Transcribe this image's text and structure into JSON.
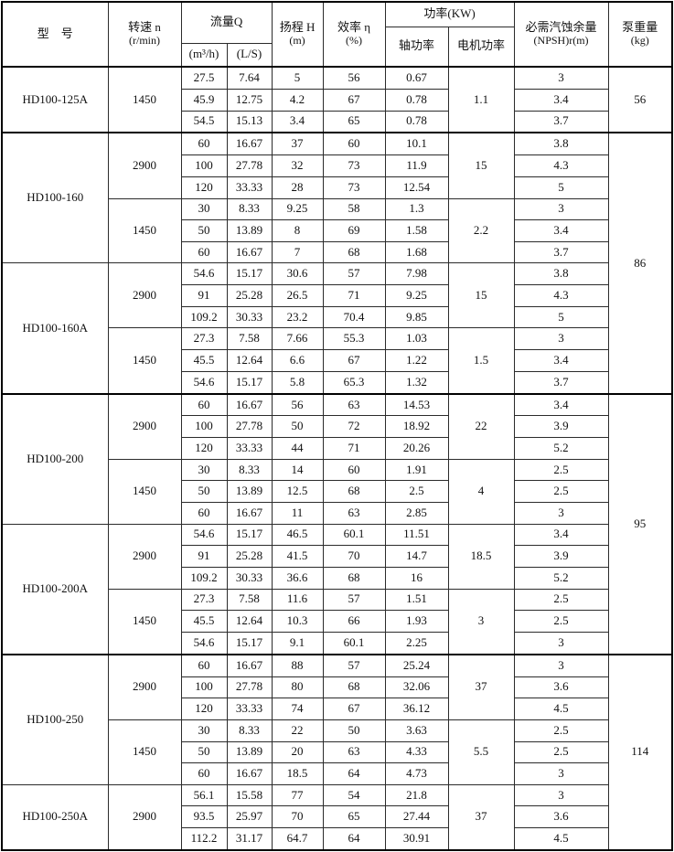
{
  "table": {
    "header": {
      "model": "型　号",
      "speed_l1": "转速 n",
      "speed_l2": "(r/min)",
      "flow": "流量Q",
      "flow_m3h": "(m³/h)",
      "flow_ls": "(L/S)",
      "head_l1": "扬程 H",
      "head_l2": "(m)",
      "eff_l1": "效率 η",
      "eff_l2": "(%)",
      "power": "功率(KW)",
      "shaft": "轴功率",
      "motor": "电机功率",
      "npsh_l1": "必需汽蚀余量",
      "npsh_l2": "(NPSH)r(m)",
      "weight_l1": "泵重量",
      "weight_l2": "(kg)"
    },
    "groups": [
      {
        "weight": "56",
        "models": [
          {
            "model": "HD100-125A",
            "blocks": [
              {
                "speed": "1450",
                "motor": "1.1",
                "rows": [
                  {
                    "m3h": "27.5",
                    "ls": "7.64",
                    "h": "5",
                    "eff": "56",
                    "shaft": "0.67",
                    "npsh": "3"
                  },
                  {
                    "m3h": "45.9",
                    "ls": "12.75",
                    "h": "4.2",
                    "eff": "67",
                    "shaft": "0.78",
                    "npsh": "3.4"
                  },
                  {
                    "m3h": "54.5",
                    "ls": "15.13",
                    "h": "3.4",
                    "eff": "65",
                    "shaft": "0.78",
                    "npsh": "3.7"
                  }
                ]
              }
            ]
          }
        ]
      },
      {
        "weight": "86",
        "models": [
          {
            "model": "HD100-160",
            "blocks": [
              {
                "speed": "2900",
                "motor": "15",
                "rows": [
                  {
                    "m3h": "60",
                    "ls": "16.67",
                    "h": "37",
                    "eff": "60",
                    "shaft": "10.1",
                    "npsh": "3.8"
                  },
                  {
                    "m3h": "100",
                    "ls": "27.78",
                    "h": "32",
                    "eff": "73",
                    "shaft": "11.9",
                    "npsh": "4.3"
                  },
                  {
                    "m3h": "120",
                    "ls": "33.33",
                    "h": "28",
                    "eff": "73",
                    "shaft": "12.54",
                    "npsh": "5"
                  }
                ]
              },
              {
                "speed": "1450",
                "motor": "2.2",
                "rows": [
                  {
                    "m3h": "30",
                    "ls": "8.33",
                    "h": "9.25",
                    "eff": "58",
                    "shaft": "1.3",
                    "npsh": "3"
                  },
                  {
                    "m3h": "50",
                    "ls": "13.89",
                    "h": "8",
                    "eff": "69",
                    "shaft": "1.58",
                    "npsh": "3.4"
                  },
                  {
                    "m3h": "60",
                    "ls": "16.67",
                    "h": "7",
                    "eff": "68",
                    "shaft": "1.68",
                    "npsh": "3.7"
                  }
                ]
              }
            ]
          },
          {
            "model": "HD100-160A",
            "blocks": [
              {
                "speed": "2900",
                "motor": "15",
                "rows": [
                  {
                    "m3h": "54.6",
                    "ls": "15.17",
                    "h": "30.6",
                    "eff": "57",
                    "shaft": "7.98",
                    "npsh": "3.8"
                  },
                  {
                    "m3h": "91",
                    "ls": "25.28",
                    "h": "26.5",
                    "eff": "71",
                    "shaft": "9.25",
                    "npsh": "4.3"
                  },
                  {
                    "m3h": "109.2",
                    "ls": "30.33",
                    "h": "23.2",
                    "eff": "70.4",
                    "shaft": "9.85",
                    "npsh": "5"
                  }
                ]
              },
              {
                "speed": "1450",
                "motor": "1.5",
                "rows": [
                  {
                    "m3h": "27.3",
                    "ls": "7.58",
                    "h": "7.66",
                    "eff": "55.3",
                    "shaft": "1.03",
                    "npsh": "3"
                  },
                  {
                    "m3h": "45.5",
                    "ls": "12.64",
                    "h": "6.6",
                    "eff": "67",
                    "shaft": "1.22",
                    "npsh": "3.4"
                  },
                  {
                    "m3h": "54.6",
                    "ls": "15.17",
                    "h": "5.8",
                    "eff": "65.3",
                    "shaft": "1.32",
                    "npsh": "3.7"
                  }
                ]
              }
            ]
          }
        ]
      },
      {
        "weight": "95",
        "models": [
          {
            "model": "HD100-200",
            "blocks": [
              {
                "speed": "2900",
                "motor": "22",
                "rows": [
                  {
                    "m3h": "60",
                    "ls": "16.67",
                    "h": "56",
                    "eff": "63",
                    "shaft": "14.53",
                    "npsh": "3.4"
                  },
                  {
                    "m3h": "100",
                    "ls": "27.78",
                    "h": "50",
                    "eff": "72",
                    "shaft": "18.92",
                    "npsh": "3.9"
                  },
                  {
                    "m3h": "120",
                    "ls": "33.33",
                    "h": "44",
                    "eff": "71",
                    "shaft": "20.26",
                    "npsh": "5.2"
                  }
                ]
              },
              {
                "speed": "1450",
                "motor": "4",
                "rows": [
                  {
                    "m3h": "30",
                    "ls": "8.33",
                    "h": "14",
                    "eff": "60",
                    "shaft": "1.91",
                    "npsh": "2.5"
                  },
                  {
                    "m3h": "50",
                    "ls": "13.89",
                    "h": "12.5",
                    "eff": "68",
                    "shaft": "2.5",
                    "npsh": "2.5"
                  },
                  {
                    "m3h": "60",
                    "ls": "16.67",
                    "h": "11",
                    "eff": "63",
                    "shaft": "2.85",
                    "npsh": "3"
                  }
                ]
              }
            ]
          },
          {
            "model": "HD100-200A",
            "blocks": [
              {
                "speed": "2900",
                "motor": "18.5",
                "rows": [
                  {
                    "m3h": "54.6",
                    "ls": "15.17",
                    "h": "46.5",
                    "eff": "60.1",
                    "shaft": "11.51",
                    "npsh": "3.4"
                  },
                  {
                    "m3h": "91",
                    "ls": "25.28",
                    "h": "41.5",
                    "eff": "70",
                    "shaft": "14.7",
                    "npsh": "3.9"
                  },
                  {
                    "m3h": "109.2",
                    "ls": "30.33",
                    "h": "36.6",
                    "eff": "68",
                    "shaft": "16",
                    "npsh": "5.2"
                  }
                ]
              },
              {
                "speed": "1450",
                "motor": "3",
                "rows": [
                  {
                    "m3h": "27.3",
                    "ls": "7.58",
                    "h": "11.6",
                    "eff": "57",
                    "shaft": "1.51",
                    "npsh": "2.5"
                  },
                  {
                    "m3h": "45.5",
                    "ls": "12.64",
                    "h": "10.3",
                    "eff": "66",
                    "shaft": "1.93",
                    "npsh": "2.5"
                  },
                  {
                    "m3h": "54.6",
                    "ls": "15.17",
                    "h": "9.1",
                    "eff": "60.1",
                    "shaft": "2.25",
                    "npsh": "3"
                  }
                ]
              }
            ]
          }
        ]
      },
      {
        "weight": "114",
        "models": [
          {
            "model": "HD100-250",
            "blocks": [
              {
                "speed": "2900",
                "motor": "37",
                "rows": [
                  {
                    "m3h": "60",
                    "ls": "16.67",
                    "h": "88",
                    "eff": "57",
                    "shaft": "25.24",
                    "npsh": "3"
                  },
                  {
                    "m3h": "100",
                    "ls": "27.78",
                    "h": "80",
                    "eff": "68",
                    "shaft": "32.06",
                    "npsh": "3.6"
                  },
                  {
                    "m3h": "120",
                    "ls": "33.33",
                    "h": "74",
                    "eff": "67",
                    "shaft": "36.12",
                    "npsh": "4.5"
                  }
                ]
              },
              {
                "speed": "1450",
                "motor": "5.5",
                "rows": [
                  {
                    "m3h": "30",
                    "ls": "8.33",
                    "h": "22",
                    "eff": "50",
                    "shaft": "3.63",
                    "npsh": "2.5"
                  },
                  {
                    "m3h": "50",
                    "ls": "13.89",
                    "h": "20",
                    "eff": "63",
                    "shaft": "4.33",
                    "npsh": "2.5"
                  },
                  {
                    "m3h": "60",
                    "ls": "16.67",
                    "h": "18.5",
                    "eff": "64",
                    "shaft": "4.73",
                    "npsh": "3"
                  }
                ]
              }
            ]
          },
          {
            "model": "HD100-250A",
            "blocks": [
              {
                "speed": "2900",
                "motor": "37",
                "rows": [
                  {
                    "m3h": "56.1",
                    "ls": "15.58",
                    "h": "77",
                    "eff": "54",
                    "shaft": "21.8",
                    "npsh": "3"
                  },
                  {
                    "m3h": "93.5",
                    "ls": "25.97",
                    "h": "70",
                    "eff": "65",
                    "shaft": "27.44",
                    "npsh": "3.6"
                  },
                  {
                    "m3h": "112.2",
                    "ls": "31.17",
                    "h": "64.7",
                    "eff": "64",
                    "shaft": "30.91",
                    "npsh": "4.5"
                  }
                ]
              }
            ]
          }
        ]
      }
    ]
  }
}
